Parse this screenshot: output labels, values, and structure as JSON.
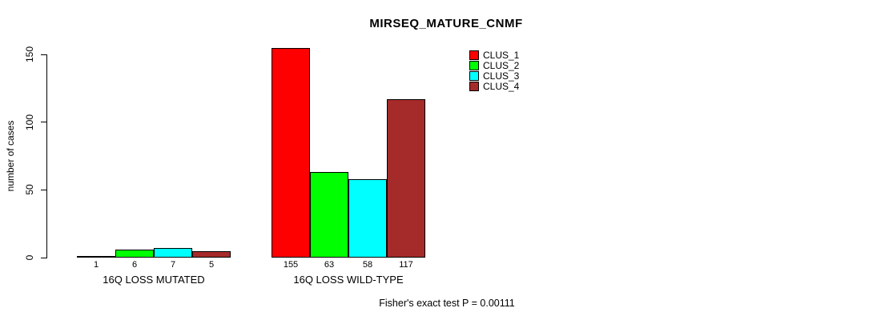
{
  "chart_data": {
    "type": "bar",
    "title": "MIRSEQ_MATURE_CNMF",
    "ylabel": "number of cases",
    "xlabel": "",
    "categories": [
      "16Q LOSS MUTATED",
      "16Q LOSS WILD-TYPE"
    ],
    "series": [
      {
        "name": "CLUS_1",
        "color": "#FF0000",
        "values": [
          1,
          155
        ]
      },
      {
        "name": "CLUS_2",
        "color": "#00FF00",
        "values": [
          6,
          63
        ]
      },
      {
        "name": "CLUS_3",
        "color": "#00FFFF",
        "values": [
          7,
          58
        ]
      },
      {
        "name": "CLUS_4",
        "color": "#A52A2A",
        "values": [
          5,
          117
        ]
      }
    ],
    "ylim": [
      0,
      150
    ],
    "y_ticks": [
      0,
      50,
      100,
      150
    ],
    "bar_value_labels_shown": true,
    "grid": false,
    "legend_position": "top-right",
    "annotation": "Fisher's exact test P = 0.00111"
  },
  "colors": {
    "background": "#FFFFFF",
    "axis": "#000000",
    "text": "#000000"
  }
}
